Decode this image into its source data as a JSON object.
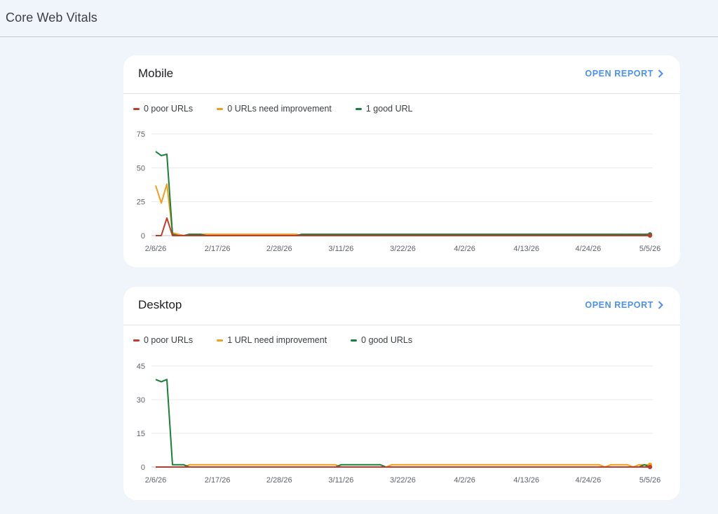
{
  "page": {
    "title": "Core Web Vitals"
  },
  "colors": {
    "poor": "#c5392b",
    "needs_improvement": "#f29d1b",
    "good": "#188038",
    "link": "#1a73e8"
  },
  "cards": [
    {
      "title": "Mobile",
      "open_report_label": "OPEN REPORT",
      "legend": [
        {
          "label": "0 poor URLs",
          "color": "#c5392b"
        },
        {
          "label": "0 URLs need improvement",
          "color": "#f29d1b"
        },
        {
          "label": "1 good URL",
          "color": "#188038"
        }
      ]
    },
    {
      "title": "Desktop",
      "open_report_label": "OPEN REPORT",
      "legend": [
        {
          "label": "0 poor URLs",
          "color": "#c5392b"
        },
        {
          "label": "1 URL need improvement",
          "color": "#f29d1b"
        },
        {
          "label": "0 good URLs",
          "color": "#188038"
        }
      ]
    }
  ],
  "chart_data": [
    {
      "type": "line",
      "x_ticks": [
        "2/6/26",
        "2/17/26",
        "2/28/26",
        "3/11/26",
        "3/22/26",
        "4/2/26",
        "4/13/26",
        "4/24/26",
        "5/5/26"
      ],
      "y_ticks": [
        0,
        25,
        50,
        75
      ],
      "ylim": [
        0,
        75
      ],
      "x_range_days": [
        0,
        88
      ],
      "grid": true,
      "series": [
        {
          "name": "0 poor URLs",
          "color": "#c5392b",
          "points": [
            [
              0,
              0
            ],
            [
              1,
              0
            ],
            [
              2,
              13
            ],
            [
              3,
              0
            ],
            [
              4,
              0
            ],
            [
              88,
              0
            ]
          ]
        },
        {
          "name": "0 URLs need improvement",
          "color": "#f29d1b",
          "points": [
            [
              0,
              37
            ],
            [
              1,
              24
            ],
            [
              2,
              38
            ],
            [
              3,
              2
            ],
            [
              4,
              1
            ],
            [
              5,
              0
            ],
            [
              6,
              1
            ],
            [
              25,
              1
            ],
            [
              26,
              0
            ],
            [
              82,
              0
            ],
            [
              83,
              1
            ],
            [
              84,
              0
            ],
            [
              88,
              0
            ]
          ]
        },
        {
          "name": "1 good URL",
          "color": "#188038",
          "points": [
            [
              0,
              62
            ],
            [
              1,
              59
            ],
            [
              2,
              60
            ],
            [
              3,
              1
            ],
            [
              4,
              0
            ],
            [
              5,
              0
            ],
            [
              6,
              1
            ],
            [
              8,
              1
            ],
            [
              9,
              0
            ],
            [
              25,
              0
            ],
            [
              26,
              1
            ],
            [
              82,
              1
            ],
            [
              83,
              1
            ],
            [
              84,
              1
            ],
            [
              88,
              1
            ]
          ]
        }
      ]
    },
    {
      "type": "line",
      "x_ticks": [
        "2/6/26",
        "2/17/26",
        "2/28/26",
        "3/11/26",
        "3/22/26",
        "4/2/26",
        "4/13/26",
        "4/24/26",
        "5/5/26"
      ],
      "y_ticks": [
        0,
        15,
        30,
        45
      ],
      "ylim": [
        0,
        45
      ],
      "x_range_days": [
        0,
        88
      ],
      "grid": true,
      "series": [
        {
          "name": "0 poor URLs",
          "color": "#c5392b",
          "points": [
            [
              0,
              0
            ],
            [
              88,
              0
            ]
          ]
        },
        {
          "name": "1 URL need improvement",
          "color": "#f29d1b",
          "points": [
            [
              0,
              0
            ],
            [
              5,
              0
            ],
            [
              6,
              1
            ],
            [
              32,
              1
            ],
            [
              33,
              0
            ],
            [
              41,
              0
            ],
            [
              42,
              1
            ],
            [
              79,
              1
            ],
            [
              80,
              0
            ],
            [
              81,
              1
            ],
            [
              84,
              1
            ],
            [
              85,
              0
            ],
            [
              86,
              1
            ],
            [
              88,
              1
            ]
          ]
        },
        {
          "name": "0 good URLs",
          "color": "#188038",
          "points": [
            [
              0,
              39
            ],
            [
              1,
              38
            ],
            [
              2,
              39
            ],
            [
              3,
              1
            ],
            [
              5,
              1
            ],
            [
              6,
              0
            ],
            [
              32,
              0
            ],
            [
              33,
              1
            ],
            [
              40,
              1
            ],
            [
              41,
              0
            ],
            [
              86,
              0
            ],
            [
              87,
              1
            ],
            [
              88,
              0
            ]
          ]
        }
      ]
    }
  ]
}
